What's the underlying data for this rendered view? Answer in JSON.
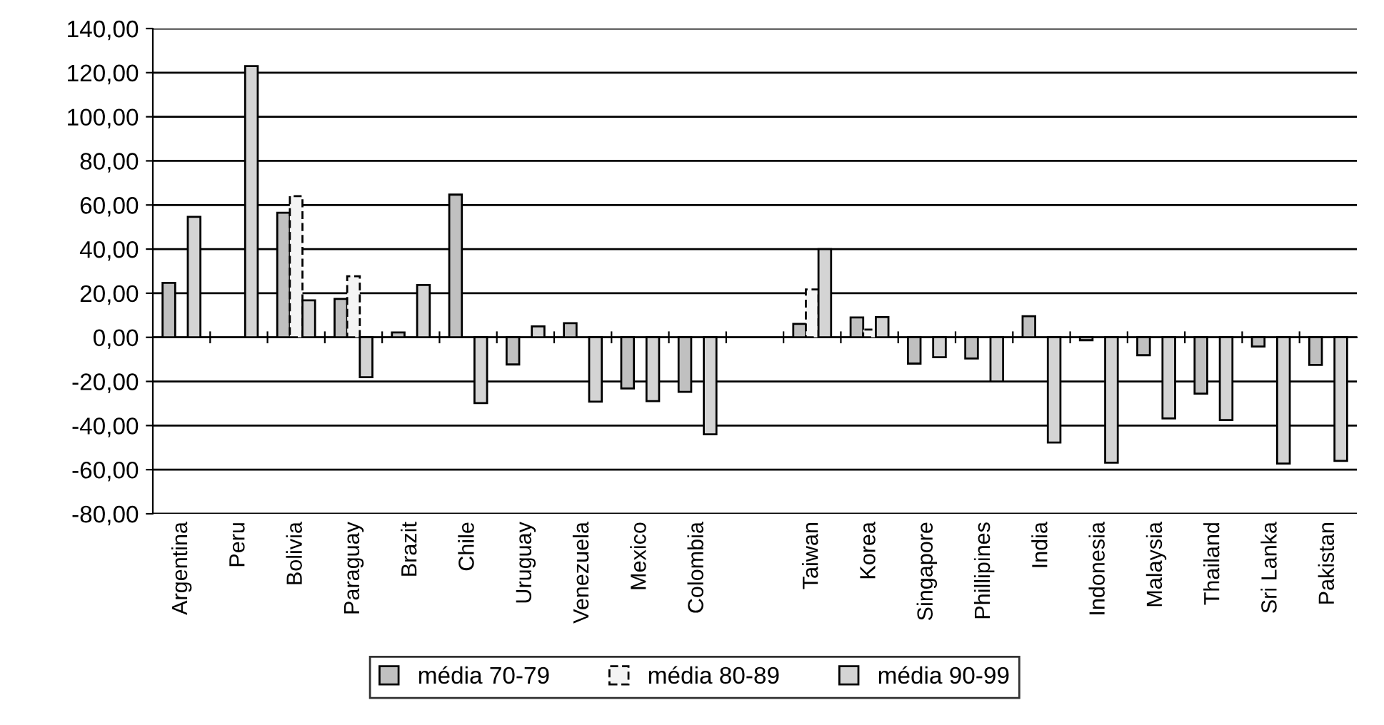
{
  "chart_data": {
    "type": "bar",
    "categories": [
      "Argentina",
      "Peru",
      "Bolivia",
      "Paraguay",
      "Brazit",
      "Chile",
      "Uruguay",
      "Venezuela",
      "Mexico",
      "Colombia",
      null,
      "Taiwan",
      "Korea",
      "Singapore",
      "Phillipines",
      "India",
      "Indonesia",
      "Malaysia",
      "Thailand",
      "Sri Lanka",
      "Pakistan"
    ],
    "series": [
      {
        "name": "média 70-79",
        "color": "#c0c0c0",
        "values": [
          24.7,
          null,
          56.5,
          17.4,
          2.2,
          64.7,
          -12.3,
          6.4,
          -23.2,
          -24.7,
          null,
          6.1,
          9.0,
          -11.9,
          -9.6,
          9.6,
          -1.3,
          -8.1,
          -25.5,
          -4.2,
          -12.5
        ]
      },
      {
        "name": "média 80-89",
        "color": "#f4f4f4",
        "line_style": "dashed",
        "values": [
          null,
          null,
          64,
          27.7,
          null,
          null,
          null,
          null,
          null,
          null,
          null,
          21.7,
          3.5,
          null,
          null,
          null,
          null,
          null,
          null,
          null,
          null
        ]
      },
      {
        "name": "média 90-99",
        "color": "#d4d4d4",
        "values": [
          54.6,
          123,
          16.8,
          -18.1,
          23.7,
          -29.8,
          5.0,
          -29.2,
          -28.9,
          -44,
          null,
          40,
          9.2,
          -9,
          -20,
          -47.7,
          -56.8,
          -36.8,
          -37.5,
          -57.2,
          -56
        ]
      }
    ],
    "ylim": [
      -80,
      140
    ],
    "yticks": [
      {
        "value": -80,
        "label": "-80,00"
      },
      {
        "value": -60,
        "label": "-60,00"
      },
      {
        "value": -40,
        "label": "-40,00"
      },
      {
        "value": -20,
        "label": "-20,00"
      },
      {
        "value": 0,
        "label": "0,00"
      },
      {
        "value": 20,
        "label": "20,00"
      },
      {
        "value": 40,
        "label": "40,00"
      },
      {
        "value": 60,
        "label": "60,00"
      },
      {
        "value": 80,
        "label": "80,00"
      },
      {
        "value": 100,
        "label": "100,00"
      },
      {
        "value": 120,
        "label": "120,00"
      },
      {
        "value": 140,
        "label": "140,00"
      }
    ],
    "grid": "y",
    "legend": "bottom"
  }
}
